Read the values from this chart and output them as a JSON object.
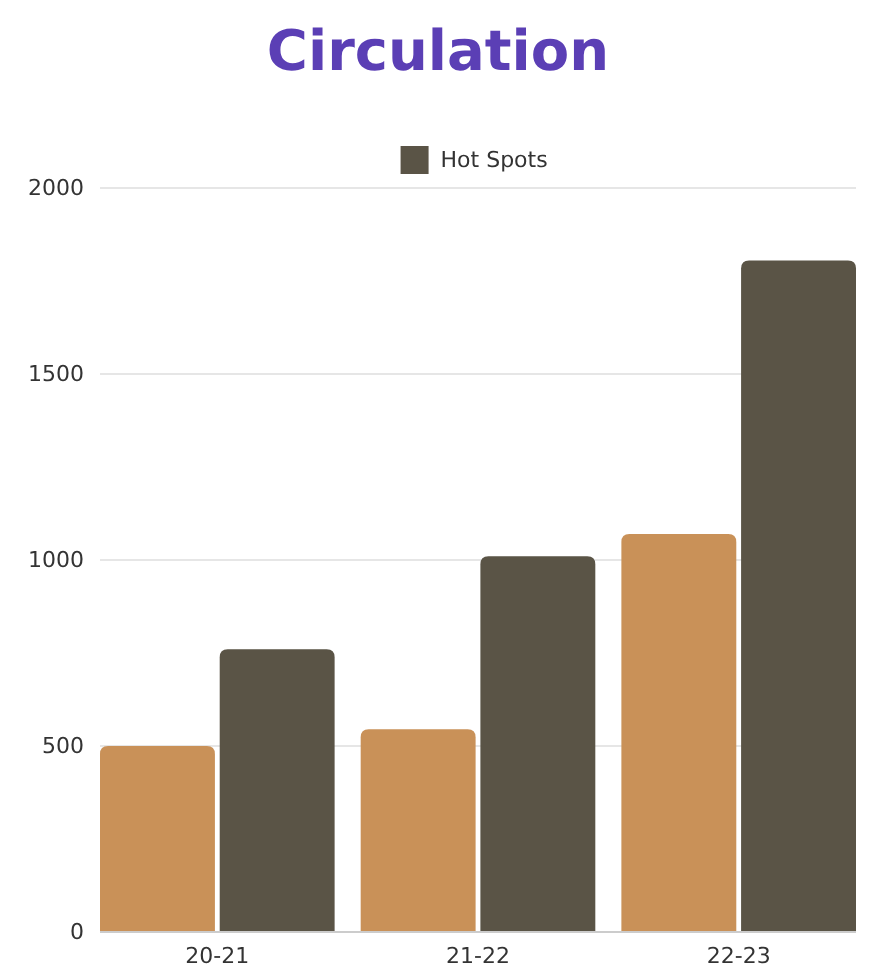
{
  "chart_data": {
    "type": "bar",
    "title": "Circulation",
    "categories": [
      "20-21",
      "21-22",
      "22-23"
    ],
    "series": [
      {
        "color": "#c99158",
        "values": [
          500,
          545,
          1070
        ]
      },
      {
        "name": "Hot Spots",
        "color": "#5a5446",
        "values": [
          760,
          1010,
          1805
        ]
      }
    ],
    "ylim": [
      0,
      2000
    ],
    "yticks": [
      0,
      500,
      1000,
      1500,
      2000
    ],
    "grid": "y",
    "legend": "top"
  }
}
